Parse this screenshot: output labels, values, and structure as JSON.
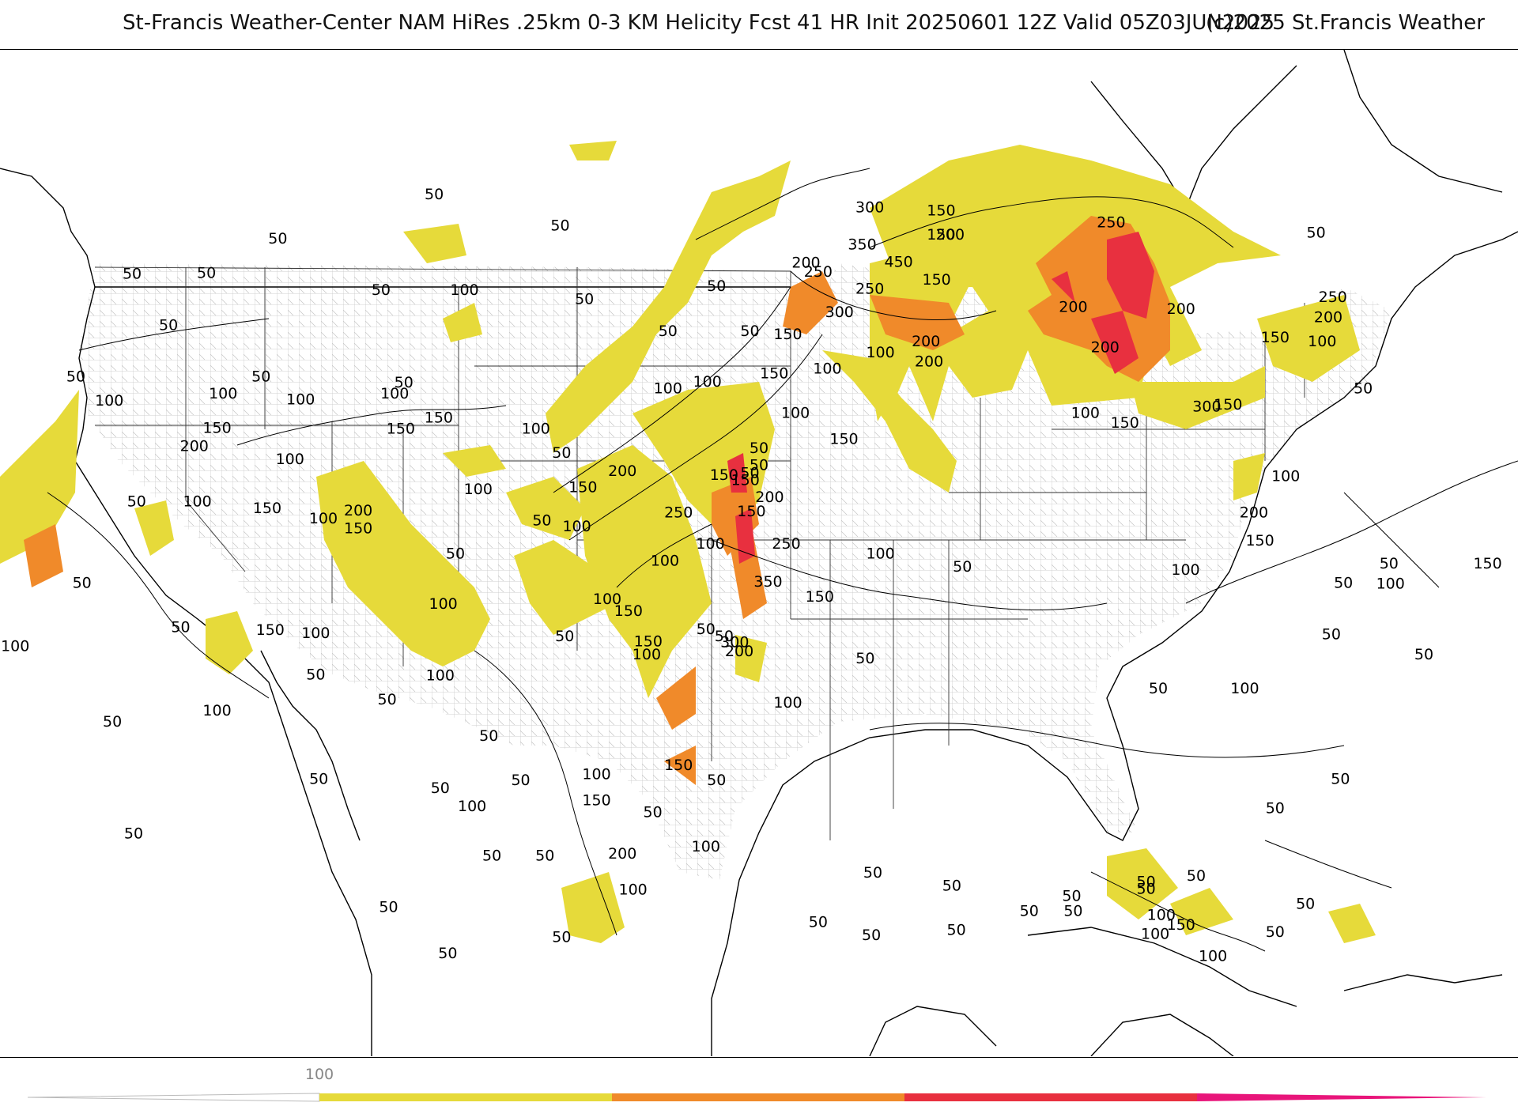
{
  "title": {
    "main": "St-Francis Weather-Center NAM HiRes .25km 0-3 KM Helicity Fcst 41 HR Init 20250601 12Z  Valid 05Z03JUN2025",
    "copyright": "(c)2025 St.Francis Weather"
  },
  "colors": {
    "yellow": "#e6da3a",
    "orange": "#f08a2a",
    "red": "#e8303f",
    "magenta": "#e8157a",
    "contour": "#000000",
    "state_lines": "#333333",
    "county_lines": "#b8b8b8"
  },
  "colorbar": {
    "tick_label": "100",
    "bands": [
      "#e6da3a",
      "#f08a2a",
      "#e8303f",
      "#e8157a"
    ]
  },
  "map": {
    "field": "0-3 KM Helicity",
    "contour_interval": 50,
    "contour_labels": [
      {
        "v": "50",
        "a": 0.286,
        "b": 0.143
      },
      {
        "v": "50",
        "a": 0.369,
        "b": 0.174
      },
      {
        "v": "50",
        "a": 0.183,
        "b": 0.187
      },
      {
        "v": "50",
        "a": 0.087,
        "b": 0.222
      },
      {
        "v": "50",
        "a": 0.136,
        "b": 0.221
      },
      {
        "v": "50",
        "a": 0.251,
        "b": 0.238
      },
      {
        "v": "50",
        "a": 0.111,
        "b": 0.273
      },
      {
        "v": "50",
        "a": 0.05,
        "b": 0.324
      },
      {
        "v": "50",
        "a": 0.172,
        "b": 0.324
      },
      {
        "v": "50",
        "a": 0.266,
        "b": 0.33
      },
      {
        "v": "50",
        "a": 0.385,
        "b": 0.247
      },
      {
        "v": "50",
        "a": 0.44,
        "b": 0.279
      },
      {
        "v": "50",
        "a": 0.494,
        "b": 0.279
      },
      {
        "v": "50",
        "a": 0.09,
        "b": 0.448
      },
      {
        "v": "50",
        "a": 0.054,
        "b": 0.529
      },
      {
        "v": "50",
        "a": 0.119,
        "b": 0.573
      },
      {
        "v": "50",
        "a": 0.074,
        "b": 0.667
      },
      {
        "v": "50",
        "a": 0.088,
        "b": 0.778
      },
      {
        "v": "50",
        "a": 0.256,
        "b": 0.851
      },
      {
        "v": "50",
        "a": 0.295,
        "b": 0.897
      },
      {
        "v": "50",
        "a": 0.37,
        "b": 0.4
      },
      {
        "v": "50",
        "a": 0.357,
        "b": 0.467
      },
      {
        "v": "50",
        "a": 0.3,
        "b": 0.5
      },
      {
        "v": "50",
        "a": 0.5,
        "b": 0.412
      },
      {
        "v": "50",
        "a": 0.477,
        "b": 0.582
      },
      {
        "v": "50",
        "a": 0.372,
        "b": 0.582
      },
      {
        "v": "50",
        "a": 0.465,
        "b": 0.575
      },
      {
        "v": "50",
        "a": 0.208,
        "b": 0.62
      },
      {
        "v": "50",
        "a": 0.255,
        "b": 0.645
      },
      {
        "v": "50",
        "a": 0.322,
        "b": 0.681
      },
      {
        "v": "50",
        "a": 0.21,
        "b": 0.724
      },
      {
        "v": "50",
        "a": 0.29,
        "b": 0.733
      },
      {
        "v": "50",
        "a": 0.343,
        "b": 0.725
      },
      {
        "v": "50",
        "a": 0.324,
        "b": 0.8
      },
      {
        "v": "50",
        "a": 0.359,
        "b": 0.8
      },
      {
        "v": "50",
        "a": 0.43,
        "b": 0.757
      },
      {
        "v": "50",
        "a": 0.472,
        "b": 0.725
      },
      {
        "v": "50",
        "a": 0.37,
        "b": 0.881
      },
      {
        "v": "50",
        "a": 0.57,
        "b": 0.604
      },
      {
        "v": "50",
        "a": 0.634,
        "b": 0.513
      },
      {
        "v": "50",
        "a": 0.763,
        "b": 0.634
      },
      {
        "v": "50",
        "a": 0.877,
        "b": 0.58
      },
      {
        "v": "50",
        "a": 0.898,
        "b": 0.336
      },
      {
        "v": "50",
        "a": 0.867,
        "b": 0.181
      },
      {
        "v": "50",
        "a": 0.885,
        "b": 0.529
      },
      {
        "v": "50",
        "a": 0.915,
        "b": 0.51
      },
      {
        "v": "50",
        "a": 0.938,
        "b": 0.6
      },
      {
        "v": "50",
        "a": 0.883,
        "b": 0.724
      },
      {
        "v": "50",
        "a": 0.84,
        "b": 0.753
      },
      {
        "v": "50",
        "a": 0.86,
        "b": 0.848
      },
      {
        "v": "50",
        "a": 0.84,
        "b": 0.876
      },
      {
        "v": "50",
        "a": 0.755,
        "b": 0.833
      },
      {
        "v": "50",
        "a": 0.706,
        "b": 0.84
      },
      {
        "v": "50",
        "a": 0.627,
        "b": 0.83
      },
      {
        "v": "50",
        "a": 0.575,
        "b": 0.817
      },
      {
        "v": "50",
        "a": 0.539,
        "b": 0.866
      },
      {
        "v": "50",
        "a": 0.574,
        "b": 0.879
      },
      {
        "v": "50",
        "a": 0.63,
        "b": 0.874
      },
      {
        "v": "50",
        "a": 0.678,
        "b": 0.855
      },
      {
        "v": "50",
        "a": 0.707,
        "b": 0.855
      },
      {
        "v": "50",
        "a": 0.755,
        "b": 0.826
      },
      {
        "v": "50",
        "a": 0.788,
        "b": 0.82
      },
      {
        "v": "50",
        "a": 0.472,
        "b": 0.234
      },
      {
        "v": "50",
        "a": 0.5,
        "b": 0.395
      },
      {
        "v": "50",
        "a": 0.494,
        "b": 0.42
      }
    ],
    "contour_labels_100": [
      {
        "v": "100",
        "a": 0.306,
        "b": 0.238
      },
      {
        "v": "100",
        "a": 0.072,
        "b": 0.348
      },
      {
        "v": "100",
        "a": 0.147,
        "b": 0.341
      },
      {
        "v": "100",
        "a": 0.198,
        "b": 0.347
      },
      {
        "v": "100",
        "a": 0.26,
        "b": 0.341
      },
      {
        "v": "100",
        "a": 0.191,
        "b": 0.406
      },
      {
        "v": "100",
        "a": 0.13,
        "b": 0.448
      },
      {
        "v": "100",
        "a": 0.315,
        "b": 0.436
      },
      {
        "v": "100",
        "a": 0.213,
        "b": 0.465
      },
      {
        "v": "100",
        "a": 0.353,
        "b": 0.376
      },
      {
        "v": "100",
        "a": 0.44,
        "b": 0.336
      },
      {
        "v": "100",
        "a": 0.466,
        "b": 0.329
      },
      {
        "v": "100",
        "a": 0.38,
        "b": 0.473
      },
      {
        "v": "100",
        "a": 0.4,
        "b": 0.545
      },
      {
        "v": "100",
        "a": 0.292,
        "b": 0.55
      },
      {
        "v": "100",
        "a": 0.208,
        "b": 0.579
      },
      {
        "v": "100",
        "a": 0.29,
        "b": 0.621
      },
      {
        "v": "100",
        "a": 0.143,
        "b": 0.656
      },
      {
        "v": "100",
        "a": 0.01,
        "b": 0.592
      },
      {
        "v": "100",
        "a": 0.438,
        "b": 0.507
      },
      {
        "v": "100",
        "a": 0.426,
        "b": 0.6
      },
      {
        "v": "100",
        "a": 0.468,
        "b": 0.49
      },
      {
        "v": "100",
        "a": 0.519,
        "b": 0.648
      },
      {
        "v": "100",
        "a": 0.58,
        "b": 0.5
      },
      {
        "v": "100",
        "a": 0.545,
        "b": 0.316
      },
      {
        "v": "100",
        "a": 0.524,
        "b": 0.36
      },
      {
        "v": "100",
        "a": 0.58,
        "b": 0.3
      },
      {
        "v": "100",
        "a": 0.715,
        "b": 0.36
      },
      {
        "v": "100",
        "a": 0.847,
        "b": 0.423
      },
      {
        "v": "100",
        "a": 0.781,
        "b": 0.516
      },
      {
        "v": "100",
        "a": 0.82,
        "b": 0.634
      },
      {
        "v": "100",
        "a": 0.871,
        "b": 0.289
      },
      {
        "v": "100",
        "a": 0.916,
        "b": 0.53
      },
      {
        "v": "100",
        "a": 0.393,
        "b": 0.719
      },
      {
        "v": "100",
        "a": 0.311,
        "b": 0.751
      },
      {
        "v": "100",
        "a": 0.417,
        "b": 0.834
      },
      {
        "v": "100",
        "a": 0.465,
        "b": 0.791
      },
      {
        "v": "100",
        "a": 0.765,
        "b": 0.859
      },
      {
        "v": "100",
        "a": 0.761,
        "b": 0.878
      },
      {
        "v": "100",
        "a": 0.799,
        "b": 0.9
      }
    ],
    "contour_labels_high": [
      {
        "v": "150",
        "a": 0.143,
        "b": 0.375
      },
      {
        "v": "150",
        "a": 0.289,
        "b": 0.365
      },
      {
        "v": "150",
        "a": 0.264,
        "b": 0.376
      },
      {
        "v": "150",
        "a": 0.176,
        "b": 0.455
      },
      {
        "v": "150",
        "a": 0.236,
        "b": 0.475
      },
      {
        "v": "150",
        "a": 0.384,
        "b": 0.434
      },
      {
        "v": "150",
        "a": 0.178,
        "b": 0.576
      },
      {
        "v": "150",
        "a": 0.414,
        "b": 0.557
      },
      {
        "v": "150",
        "a": 0.427,
        "b": 0.587
      },
      {
        "v": "150",
        "a": 0.491,
        "b": 0.427
      },
      {
        "v": "150",
        "a": 0.477,
        "b": 0.422
      },
      {
        "v": "150",
        "a": 0.556,
        "b": 0.386
      },
      {
        "v": "150",
        "a": 0.519,
        "b": 0.282
      },
      {
        "v": "150",
        "a": 0.51,
        "b": 0.321
      },
      {
        "v": "150",
        "a": 0.617,
        "b": 0.228
      },
      {
        "v": "150",
        "a": 0.62,
        "b": 0.183
      },
      {
        "v": "150",
        "a": 0.62,
        "b": 0.159
      },
      {
        "v": "150",
        "a": 0.741,
        "b": 0.37
      },
      {
        "v": "150",
        "a": 0.809,
        "b": 0.352
      },
      {
        "v": "150",
        "a": 0.84,
        "b": 0.285
      },
      {
        "v": "150",
        "a": 0.83,
        "b": 0.487
      },
      {
        "v": "150",
        "a": 0.98,
        "b": 0.51
      },
      {
        "v": "150",
        "a": 0.54,
        "b": 0.543
      },
      {
        "v": "150",
        "a": 0.447,
        "b": 0.71
      },
      {
        "v": "150",
        "a": 0.393,
        "b": 0.745
      },
      {
        "v": "150",
        "a": 0.778,
        "b": 0.869
      },
      {
        "v": "150",
        "a": 0.495,
        "b": 0.458
      },
      {
        "v": "200",
        "a": 0.128,
        "b": 0.393
      },
      {
        "v": "200",
        "a": 0.236,
        "b": 0.457
      },
      {
        "v": "200",
        "a": 0.41,
        "b": 0.418
      },
      {
        "v": "200",
        "a": 0.531,
        "b": 0.211
      },
      {
        "v": "200",
        "a": 0.626,
        "b": 0.183
      },
      {
        "v": "200",
        "a": 0.61,
        "b": 0.289
      },
      {
        "v": "200",
        "a": 0.612,
        "b": 0.309
      },
      {
        "v": "200",
        "a": 0.707,
        "b": 0.255
      },
      {
        "v": "200",
        "a": 0.728,
        "b": 0.295
      },
      {
        "v": "200",
        "a": 0.778,
        "b": 0.257
      },
      {
        "v": "200",
        "a": 0.875,
        "b": 0.265
      },
      {
        "v": "200",
        "a": 0.507,
        "b": 0.444
      },
      {
        "v": "200",
        "a": 0.487,
        "b": 0.597
      },
      {
        "v": "200",
        "a": 0.826,
        "b": 0.459
      },
      {
        "v": "200",
        "a": 0.41,
        "b": 0.798
      },
      {
        "v": "250",
        "a": 0.539,
        "b": 0.22
      },
      {
        "v": "250",
        "a": 0.573,
        "b": 0.237
      },
      {
        "v": "250",
        "a": 0.447,
        "b": 0.459
      },
      {
        "v": "250",
        "a": 0.518,
        "b": 0.49
      },
      {
        "v": "250",
        "a": 0.732,
        "b": 0.171
      },
      {
        "v": "250",
        "a": 0.878,
        "b": 0.245
      },
      {
        "v": "300",
        "a": 0.573,
        "b": 0.156
      },
      {
        "v": "300",
        "a": 0.553,
        "b": 0.26
      },
      {
        "v": "300",
        "a": 0.484,
        "b": 0.588
      },
      {
        "v": "300",
        "a": 0.795,
        "b": 0.354
      },
      {
        "v": "350",
        "a": 0.568,
        "b": 0.193
      },
      {
        "v": "350",
        "a": 0.506,
        "b": 0.528
      },
      {
        "v": "450",
        "a": 0.592,
        "b": 0.21
      }
    ]
  }
}
